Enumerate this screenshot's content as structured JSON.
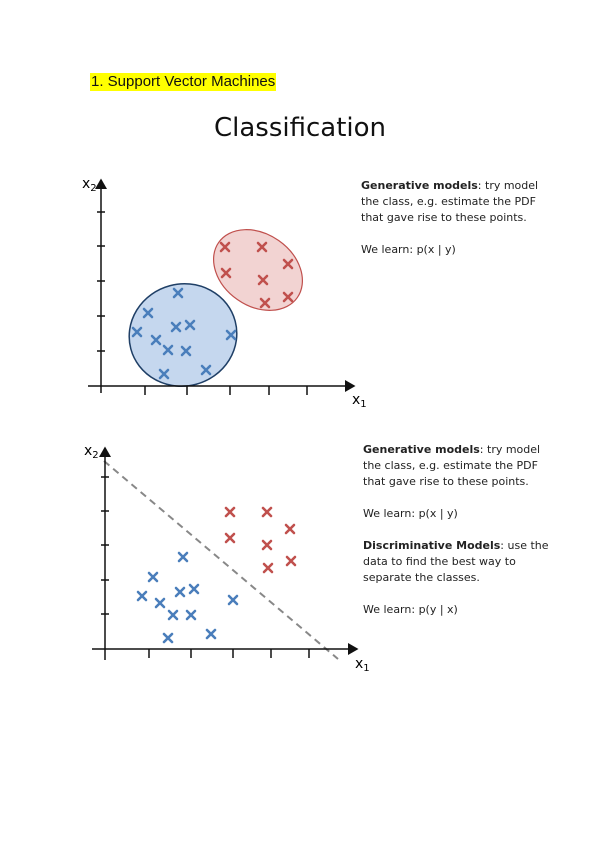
{
  "heading": "1. Support Vector Machines",
  "title": "Classification",
  "colors": {
    "blue": "#4a7ebb",
    "red": "#c0504d",
    "blue_fill": "#c5d7ee",
    "red_fill": "#f2d3d2",
    "highlight": "#ffff00"
  },
  "figure1": {
    "x_label": "x",
    "x_sub": "1",
    "y_label": "x",
    "y_sub": "2",
    "generative_bold": "Generative models",
    "generative_text": ": try model the class, e.g. estimate the PDF that gave rise to these points.",
    "learn": "We learn: p(x | y)"
  },
  "figure2": {
    "x_label": "x",
    "x_sub": "1",
    "y_label": "x",
    "y_sub": "2",
    "generative_bold": "Generative models",
    "generative_text": ": try model the class, e.g. estimate the PDF that gave rise to these points.",
    "learn_generative": "We learn: p(x | y)",
    "discriminative_bold": "Discriminative Models",
    "discriminative_text": ": use the data to find the best way to separate the classes.",
    "learn_discriminative": "We learn: p(y | x)"
  }
}
